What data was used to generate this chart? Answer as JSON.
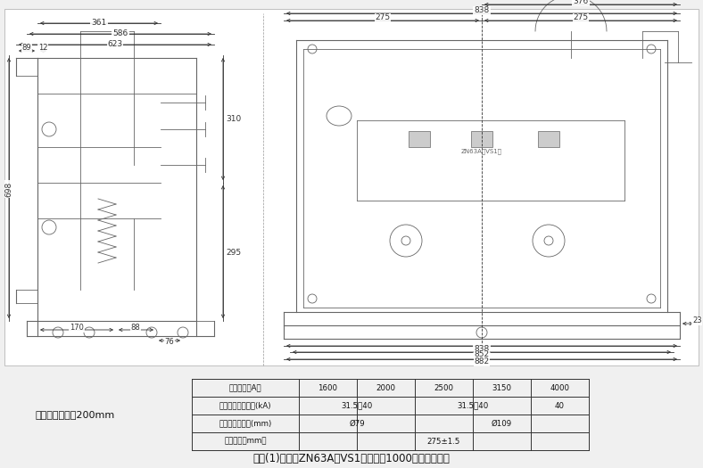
{
  "bg_color": "#f0f0f0",
  "drawing_bg": "#ffffff",
  "title": "图二(1)手车式ZN63A（VS1）断路器1000宽外形尺寸图",
  "left_note": "手车式推进行程200mm",
  "table": {
    "headers": [
      "额定电流（A）",
      "1600",
      "2000",
      "2500",
      "3150",
      "4000"
    ],
    "row1_label": "额定短路开断电流(kA)",
    "row1_data": [
      "31.5，40",
      "",
      "31.5，40",
      "",
      "40"
    ],
    "row2_label": "配合静触头尺寸(mm)",
    "row2_data": [
      "Ø79",
      "",
      "Ø109",
      "",
      ""
    ],
    "row3_label": "相间距离（mm）",
    "row3_data": [
      "275±1.5",
      "",
      "",
      "",
      ""
    ]
  },
  "dim_color": "#333333",
  "line_color": "#555555",
  "drawing_line_color": "#666666"
}
